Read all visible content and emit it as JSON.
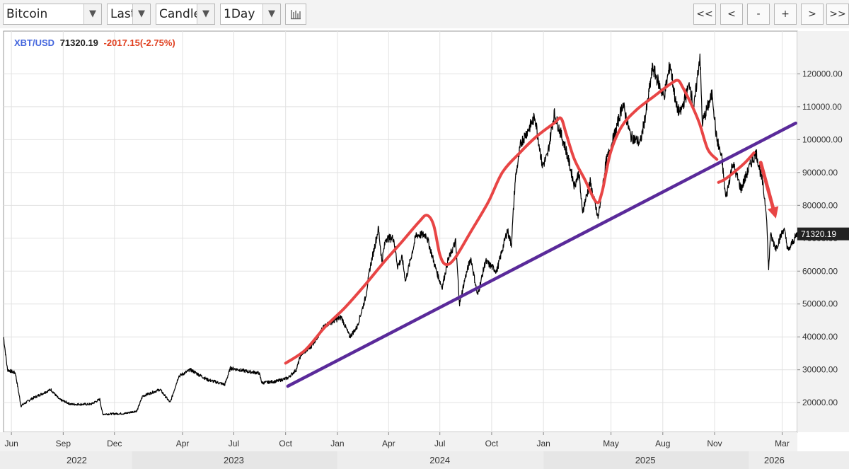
{
  "toolbar": {
    "symbol": "Bitcoin",
    "price_type": "Last",
    "chart_style": "Candle",
    "interval": "1Day",
    "nav_buttons": [
      "<<",
      "<",
      "-",
      "+",
      ">",
      ">>"
    ],
    "icons": {
      "dropdown": "triangle-down-icon",
      "settings": "bar-list-icon"
    }
  },
  "header": {
    "symbol": "XBT/USD",
    "last": "71320.19",
    "change": "-2017.15(-2.75%)",
    "symbol_color": "#4466dd",
    "change_color": "#e04020"
  },
  "chart_data": {
    "type": "line",
    "instrument": "XBT/USD",
    "yticks": [
      20000,
      30000,
      40000,
      50000,
      60000,
      70000,
      80000,
      90000,
      100000,
      110000,
      120000
    ],
    "ytick_labels": [
      "20000.00",
      "30000.00",
      "40000.00",
      "50000.00",
      "60000.00",
      "70000.00",
      "80000.00",
      "90000.00",
      "100000.00",
      "110000.00",
      "120000.00"
    ],
    "ylim": [
      11000,
      133000
    ],
    "xlim": [
      "2022-05-18",
      "2026-03-28"
    ],
    "month_ticks": [
      {
        "date": "2022-06-01",
        "label": "Jun"
      },
      {
        "date": "2022-09-01",
        "label": "Sep"
      },
      {
        "date": "2022-12-01",
        "label": "Dec"
      },
      {
        "date": "2023-04-01",
        "label": "Apr"
      },
      {
        "date": "2023-07-01",
        "label": "Jul"
      },
      {
        "date": "2023-10-01",
        "label": "Oct"
      },
      {
        "date": "2024-01-01",
        "label": "Jan"
      },
      {
        "date": "2024-04-01",
        "label": "Apr"
      },
      {
        "date": "2024-07-01",
        "label": "Jul"
      },
      {
        "date": "2024-10-01",
        "label": "Oct"
      },
      {
        "date": "2025-01-01",
        "label": "Jan"
      },
      {
        "date": "2025-05-01",
        "label": "May"
      },
      {
        "date": "2025-08-01",
        "label": "Aug"
      },
      {
        "date": "2025-11-01",
        "label": "Nov"
      },
      {
        "date": "2026-03-01",
        "label": "Mar"
      }
    ],
    "year_labels": [
      {
        "label": "2022",
        "center": "2022-09-25"
      },
      {
        "label": "2023",
        "center": "2023-07-01"
      },
      {
        "label": "2024",
        "center": "2024-07-01"
      },
      {
        "label": "2025",
        "center": "2025-07-01"
      },
      {
        "label": "2026",
        "center": "2026-02-15"
      }
    ],
    "price_series": {
      "color": "#000000",
      "points": [
        [
          "2022-05-18",
          40000
        ],
        [
          "2022-05-25",
          30000
        ],
        [
          "2022-06-08",
          29000
        ],
        [
          "2022-06-18",
          19000
        ],
        [
          "2022-07-05",
          21000
        ],
        [
          "2022-08-10",
          24000
        ],
        [
          "2022-08-25",
          21000
        ],
        [
          "2022-09-15",
          19500
        ],
        [
          "2022-10-20",
          19500
        ],
        [
          "2022-11-05",
          21000
        ],
        [
          "2022-11-10",
          16500
        ],
        [
          "2022-12-20",
          16700
        ],
        [
          "2023-01-10",
          17500
        ],
        [
          "2023-01-20",
          22000
        ],
        [
          "2023-02-20",
          24000
        ],
        [
          "2023-03-10",
          20000
        ],
        [
          "2023-03-25",
          28000
        ],
        [
          "2023-04-15",
          30000
        ],
        [
          "2023-05-15",
          27000
        ],
        [
          "2023-06-15",
          25500
        ],
        [
          "2023-06-25",
          30500
        ],
        [
          "2023-07-25",
          29500
        ],
        [
          "2023-08-15",
          29000
        ],
        [
          "2023-08-20",
          26000
        ],
        [
          "2023-09-15",
          26500
        ],
        [
          "2023-10-05",
          27500
        ],
        [
          "2023-10-20",
          30000
        ],
        [
          "2023-10-28",
          34500
        ],
        [
          "2023-11-15",
          37000
        ],
        [
          "2023-12-10",
          43500
        ],
        [
          "2024-01-08",
          46000
        ],
        [
          "2024-01-23",
          40000
        ],
        [
          "2024-02-05",
          43000
        ],
        [
          "2024-02-20",
          52000
        ],
        [
          "2024-02-28",
          61000
        ],
        [
          "2024-03-14",
          73000
        ],
        [
          "2024-03-20",
          63000
        ],
        [
          "2024-03-27",
          70000
        ],
        [
          "2024-04-10",
          70000
        ],
        [
          "2024-04-17",
          61500
        ],
        [
          "2024-04-25",
          64000
        ],
        [
          "2024-05-01",
          57000
        ],
        [
          "2024-05-20",
          71000
        ],
        [
          "2024-06-07",
          71000
        ],
        [
          "2024-06-25",
          60000
        ],
        [
          "2024-07-05",
          55000
        ],
        [
          "2024-07-15",
          63000
        ],
        [
          "2024-07-29",
          69000
        ],
        [
          "2024-08-05",
          50000
        ],
        [
          "2024-08-15",
          58000
        ],
        [
          "2024-08-25",
          64000
        ],
        [
          "2024-09-06",
          52500
        ],
        [
          "2024-09-20",
          63000
        ],
        [
          "2024-10-10",
          60000
        ],
        [
          "2024-10-29",
          72500
        ],
        [
          "2024-11-05",
          68000
        ],
        [
          "2024-11-12",
          88000
        ],
        [
          "2024-11-22",
          99000
        ],
        [
          "2024-12-05",
          103000
        ],
        [
          "2024-12-17",
          107000
        ],
        [
          "2024-12-30",
          92000
        ],
        [
          "2025-01-08",
          95000
        ],
        [
          "2025-01-20",
          108000
        ],
        [
          "2025-02-10",
          97000
        ],
        [
          "2025-02-25",
          86000
        ],
        [
          "2025-03-05",
          90000
        ],
        [
          "2025-03-11",
          78000
        ],
        [
          "2025-03-25",
          87000
        ],
        [
          "2025-04-08",
          76000
        ],
        [
          "2025-04-22",
          93000
        ],
        [
          "2025-05-10",
          103000
        ],
        [
          "2025-05-22",
          111000
        ],
        [
          "2025-06-05",
          101000
        ],
        [
          "2025-06-22",
          99000
        ],
        [
          "2025-07-03",
          109000
        ],
        [
          "2025-07-14",
          122000
        ],
        [
          "2025-07-25",
          117000
        ],
        [
          "2025-08-03",
          113000
        ],
        [
          "2025-08-14",
          123000
        ],
        [
          "2025-08-25",
          110000
        ],
        [
          "2025-09-01",
          108000
        ],
        [
          "2025-09-18",
          117000
        ],
        [
          "2025-09-25",
          109000
        ],
        [
          "2025-10-06",
          126000
        ],
        [
          "2025-10-10",
          105000
        ],
        [
          "2025-10-28",
          114000
        ],
        [
          "2025-11-04",
          101000
        ],
        [
          "2025-11-14",
          94000
        ],
        [
          "2025-11-21",
          82000
        ],
        [
          "2025-12-03",
          93000
        ],
        [
          "2025-12-18",
          85000
        ],
        [
          "2026-01-05",
          93000
        ],
        [
          "2026-01-14",
          96000
        ],
        [
          "2026-01-25",
          87000
        ],
        [
          "2026-02-01",
          78000
        ],
        [
          "2026-02-05",
          60000
        ],
        [
          "2026-02-08",
          71000
        ],
        [
          "2026-02-18",
          67000
        ],
        [
          "2026-03-04",
          73000
        ],
        [
          "2026-03-12",
          66000
        ],
        [
          "2026-03-20",
          69000
        ],
        [
          "2026-03-28",
          71320
        ]
      ]
    },
    "annotations": [
      {
        "type": "freehand-curve",
        "color": "#e84545",
        "points": [
          [
            "2023-10-01",
            32000
          ],
          [
            "2023-11-05",
            36000
          ],
          [
            "2023-12-10",
            43000
          ],
          [
            "2024-01-15",
            49000
          ],
          [
            "2024-02-20",
            56000
          ],
          [
            "2024-03-25",
            63000
          ],
          [
            "2024-04-25",
            69000
          ],
          [
            "2024-05-25",
            75000
          ],
          [
            "2024-06-08",
            77000
          ],
          [
            "2024-06-20",
            74000
          ],
          [
            "2024-07-01",
            65000
          ],
          [
            "2024-07-12",
            62000
          ],
          [
            "2024-07-28",
            64000
          ],
          [
            "2024-08-25",
            72000
          ],
          [
            "2024-09-25",
            81000
          ],
          [
            "2024-10-20",
            90000
          ],
          [
            "2024-11-20",
            96000
          ],
          [
            "2024-12-20",
            101000
          ],
          [
            "2025-01-20",
            105000
          ],
          [
            "2025-02-01",
            106500
          ],
          [
            "2025-02-10",
            102000
          ],
          [
            "2025-02-25",
            94000
          ],
          [
            "2025-03-15",
            88000
          ],
          [
            "2025-04-05",
            81000
          ],
          [
            "2025-04-15",
            84000
          ],
          [
            "2025-04-30",
            96000
          ],
          [
            "2025-05-20",
            104000
          ],
          [
            "2025-06-15",
            109000
          ],
          [
            "2025-07-15",
            113000
          ],
          [
            "2025-08-15",
            117000
          ],
          [
            "2025-08-28",
            118000
          ],
          [
            "2025-09-05",
            116000
          ],
          [
            "2025-09-20",
            111000
          ],
          [
            "2025-10-05",
            105000
          ],
          [
            "2025-10-20",
            97000
          ],
          [
            "2025-11-05",
            94000
          ]
        ]
      },
      {
        "type": "freehand-curve",
        "color": "#e84545",
        "points": [
          [
            "2025-11-08",
            87000
          ],
          [
            "2025-11-20",
            88000
          ],
          [
            "2025-12-05",
            90000
          ],
          [
            "2025-12-25",
            93000
          ],
          [
            "2026-01-10",
            96000
          ]
        ]
      },
      {
        "type": "trendline",
        "color": "#5a2a9a",
        "points": [
          [
            "2023-10-05",
            25000
          ],
          [
            "2026-03-25",
            105000
          ]
        ]
      },
      {
        "type": "arrow",
        "color": "#e84545",
        "from": [
          "2026-01-22",
          93000
        ],
        "to": [
          "2026-02-18",
          76000
        ]
      }
    ],
    "last_price_label": "71320.19",
    "last_price": 71320.19,
    "grid": true,
    "colors": {
      "background": "#ffffff",
      "grid": "#e2e2e2",
      "axis_bg": "#f2f2f2",
      "footer_bg": "#eaeaea"
    }
  }
}
